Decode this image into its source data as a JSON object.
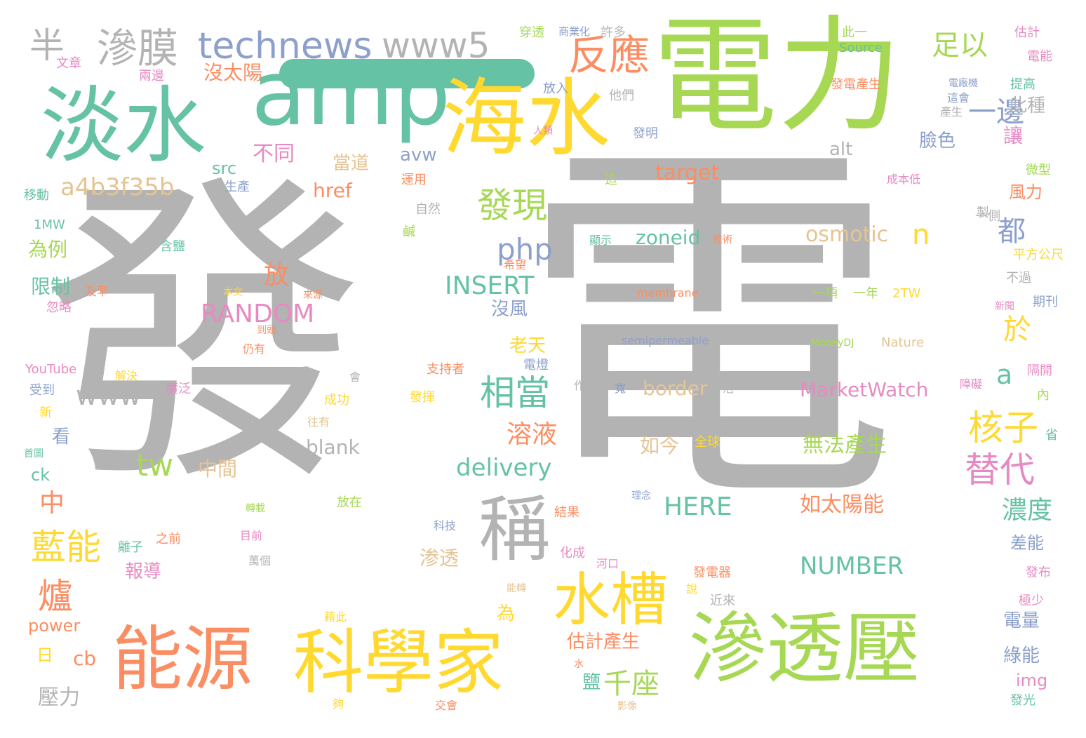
{
  "palette": {
    "gray": "#b3b3b3",
    "green": "#a6d854",
    "teal": "#66c2a5",
    "orange": "#fc8d62",
    "yellow": "#ffd92f",
    "blue": "#8da0cb",
    "pink": "#e78ac3",
    "tan": "#e5c494"
  },
  "decorative_mark": "teal-bar",
  "words": [
    {
      "text": "發",
      "color": "gray"
    },
    {
      "text": "電",
      "color": "gray"
    },
    {
      "text": "電力",
      "color": "green"
    },
    {
      "text": "淡水",
      "color": "teal"
    },
    {
      "text": "amp",
      "color": "teal"
    },
    {
      "text": "海水",
      "color": "yellow"
    },
    {
      "text": "滲透壓",
      "color": "green"
    },
    {
      "text": "能源",
      "color": "orange"
    },
    {
      "text": "科學家",
      "color": "yellow"
    },
    {
      "text": "稱",
      "color": "gray"
    },
    {
      "text": "水槽",
      "color": "yellow"
    },
    {
      "text": "technews",
      "color": "blue"
    },
    {
      "text": "www5",
      "color": "gray"
    },
    {
      "text": "半",
      "color": "gray"
    },
    {
      "text": "滲膜",
      "color": "gray"
    },
    {
      "text": "反應",
      "color": "orange"
    },
    {
      "text": "足以",
      "color": "green"
    },
    {
      "text": "藍能",
      "color": "yellow"
    },
    {
      "text": "發現",
      "color": "green"
    },
    {
      "text": "相當",
      "color": "teal"
    },
    {
      "text": "爐",
      "color": "orange"
    },
    {
      "text": "核子",
      "color": "yellow"
    },
    {
      "text": "替代",
      "color": "pink"
    },
    {
      "text": "一邊",
      "color": "blue"
    },
    {
      "text": "都",
      "color": "blue"
    },
    {
      "text": "於",
      "color": "yellow"
    },
    {
      "text": "php",
      "color": "blue"
    },
    {
      "text": "a4b3f35b",
      "color": "tan"
    },
    {
      "text": "RANDOM",
      "color": "pink"
    },
    {
      "text": "INSERT",
      "color": "teal"
    },
    {
      "text": "delivery",
      "color": "teal"
    },
    {
      "text": "www",
      "color": "gray"
    },
    {
      "text": "NUMBER",
      "color": "teal"
    },
    {
      "text": "HERE",
      "color": "teal"
    },
    {
      "text": "千座",
      "color": "green"
    },
    {
      "text": "放",
      "color": "orange"
    },
    {
      "text": "溶液",
      "color": "orange"
    },
    {
      "text": "濃度",
      "color": "teal"
    },
    {
      "text": "不同",
      "color": "pink"
    },
    {
      "text": "沒太陽",
      "color": "orange"
    },
    {
      "text": "tw",
      "color": "green"
    },
    {
      "text": "a",
      "color": "teal"
    },
    {
      "text": "n",
      "color": "yellow"
    },
    {
      "text": "osmotic",
      "color": "tan"
    },
    {
      "text": "zoneid",
      "color": "teal"
    },
    {
      "text": "target",
      "color": "orange"
    },
    {
      "text": "src",
      "color": "teal"
    },
    {
      "text": "avw",
      "color": "blue"
    },
    {
      "text": "href",
      "color": "orange"
    },
    {
      "text": "alt",
      "color": "gray"
    },
    {
      "text": "blank",
      "color": "gray"
    },
    {
      "text": "border",
      "color": "tan"
    },
    {
      "text": "MarketWatch",
      "color": "pink"
    },
    {
      "text": "無法產生",
      "color": "green"
    },
    {
      "text": "如太陽能",
      "color": "orange"
    },
    {
      "text": "如今",
      "color": "tan"
    },
    {
      "text": "估計產生",
      "color": "orange"
    },
    {
      "text": "中",
      "color": "orange"
    },
    {
      "text": "中間",
      "color": "tan"
    },
    {
      "text": "壓力",
      "color": "gray"
    },
    {
      "text": "cb",
      "color": "orange"
    },
    {
      "text": "日",
      "color": "yellow"
    },
    {
      "text": "power",
      "color": "orange"
    },
    {
      "text": "限制",
      "color": "teal"
    },
    {
      "text": "為例",
      "color": "green"
    },
    {
      "text": "報導",
      "color": "pink"
    },
    {
      "text": "渗透",
      "color": "tan"
    },
    {
      "text": "老天",
      "color": "yellow"
    },
    {
      "text": "沒風",
      "color": "blue"
    },
    {
      "text": "當道",
      "color": "tan"
    },
    {
      "text": "此種",
      "color": "gray"
    },
    {
      "text": "讓",
      "color": "pink"
    },
    {
      "text": "臉色",
      "color": "blue"
    },
    {
      "text": "風力",
      "color": "orange"
    },
    {
      "text": "電量",
      "color": "blue"
    },
    {
      "text": "綠能",
      "color": "blue"
    },
    {
      "text": "差能",
      "color": "blue"
    },
    {
      "text": "img",
      "color": "pink"
    },
    {
      "text": "為",
      "color": "yellow"
    },
    {
      "text": "鹽",
      "color": "teal"
    },
    {
      "text": "看",
      "color": "blue"
    },
    {
      "text": "ck",
      "color": "teal"
    },
    {
      "text": "生產",
      "color": "blue"
    },
    {
      "text": "移動",
      "color": "teal"
    },
    {
      "text": "1MW",
      "color": "teal"
    },
    {
      "text": "YouTube",
      "color": "pink"
    },
    {
      "text": "受到",
      "color": "blue"
    },
    {
      "text": "新",
      "color": "yellow"
    },
    {
      "text": "忽略",
      "color": "pink"
    },
    {
      "text": "文章",
      "color": "pink"
    },
    {
      "text": "兩邊",
      "color": "pink"
    },
    {
      "text": "穿透",
      "color": "green"
    },
    {
      "text": "商業化",
      "color": "blue"
    },
    {
      "text": "許多",
      "color": "gray"
    },
    {
      "text": "此一",
      "color": "green"
    },
    {
      "text": "Source",
      "color": "teal"
    },
    {
      "text": "估計",
      "color": "pink"
    },
    {
      "text": "電能",
      "color": "pink"
    },
    {
      "text": "提高",
      "color": "teal"
    },
    {
      "text": "微型",
      "color": "green"
    },
    {
      "text": "成本低",
      "color": "pink"
    },
    {
      "text": "發電產生",
      "color": "orange"
    },
    {
      "text": "電廠機",
      "color": "blue"
    },
    {
      "text": "這會",
      "color": "blue"
    },
    {
      "text": "產生",
      "color": "gray"
    },
    {
      "text": "發明",
      "color": "blue"
    },
    {
      "text": "造",
      "color": "green"
    },
    {
      "text": "放入",
      "color": "blue"
    },
    {
      "text": "他們",
      "color": "gray"
    },
    {
      "text": "人類",
      "color": "pink"
    },
    {
      "text": "運用",
      "color": "orange"
    },
    {
      "text": "自然",
      "color": "gray"
    },
    {
      "text": "鹹",
      "color": "green"
    },
    {
      "text": "含鹽",
      "color": "teal"
    },
    {
      "text": "希望",
      "color": "orange"
    },
    {
      "text": "顯示",
      "color": "teal"
    },
    {
      "text": "技術",
      "color": "orange"
    },
    {
      "text": "membrane",
      "color": "orange"
    },
    {
      "text": "一項",
      "color": "green"
    },
    {
      "text": "一年",
      "color": "green"
    },
    {
      "text": "2TW",
      "color": "yellow"
    },
    {
      "text": "semipermeable",
      "color": "blue"
    },
    {
      "text": "MoneyDJ",
      "color": "green"
    },
    {
      "text": "Nature",
      "color": "tan"
    },
    {
      "text": "平方公尺",
      "color": "yellow"
    },
    {
      "text": "不過",
      "color": "gray"
    },
    {
      "text": "一側",
      "color": "gray"
    },
    {
      "text": "製",
      "color": "gray"
    },
    {
      "text": "期刊",
      "color": "blue"
    },
    {
      "text": "新聞",
      "color": "pink"
    },
    {
      "text": "隔開",
      "color": "pink"
    },
    {
      "text": "障礙",
      "color": "pink"
    },
    {
      "text": "內",
      "color": "green"
    },
    {
      "text": "省",
      "color": "teal"
    },
    {
      "text": "及早",
      "color": "orange"
    },
    {
      "text": "本文",
      "color": "yellow"
    },
    {
      "text": "來源",
      "color": "orange"
    },
    {
      "text": "到頭",
      "color": "orange"
    },
    {
      "text": "仍有",
      "color": "orange"
    },
    {
      "text": "解決",
      "color": "yellow"
    },
    {
      "text": "廣泛",
      "color": "pink"
    },
    {
      "text": "支持者",
      "color": "orange"
    },
    {
      "text": "電燈",
      "color": "blue"
    },
    {
      "text": "作用",
      "color": "gray"
    },
    {
      "text": "寬",
      "color": "blue"
    },
    {
      "text": "泡",
      "color": "gray"
    },
    {
      "text": "會",
      "color": "gray"
    },
    {
      "text": "成功",
      "color": "yellow"
    },
    {
      "text": "發揮",
      "color": "yellow"
    },
    {
      "text": "往有",
      "color": "tan"
    },
    {
      "text": "全球",
      "color": "yellow"
    },
    {
      "text": "首圖",
      "color": "teal"
    },
    {
      "text": "轉載",
      "color": "green"
    },
    {
      "text": "放在",
      "color": "green"
    },
    {
      "text": "理念",
      "color": "blue"
    },
    {
      "text": "結果",
      "color": "orange"
    },
    {
      "text": "科技",
      "color": "blue"
    },
    {
      "text": "離子",
      "color": "teal"
    },
    {
      "text": "之前",
      "color": "orange"
    },
    {
      "text": "目前",
      "color": "pink"
    },
    {
      "text": "萬個",
      "color": "gray"
    },
    {
      "text": "化成",
      "color": "pink"
    },
    {
      "text": "河口",
      "color": "pink"
    },
    {
      "text": "發電器",
      "color": "orange"
    },
    {
      "text": "說",
      "color": "yellow"
    },
    {
      "text": "近來",
      "color": "gray"
    },
    {
      "text": "發布",
      "color": "pink"
    },
    {
      "text": "極少",
      "color": "pink"
    },
    {
      "text": "能轉",
      "color": "tan"
    },
    {
      "text": "藉此",
      "color": "yellow"
    },
    {
      "text": "水",
      "color": "orange"
    },
    {
      "text": "夠",
      "color": "yellow"
    },
    {
      "text": "交會",
      "color": "orange"
    },
    {
      "text": "影像",
      "color": "tan"
    },
    {
      "text": "發光",
      "color": "teal"
    }
  ]
}
